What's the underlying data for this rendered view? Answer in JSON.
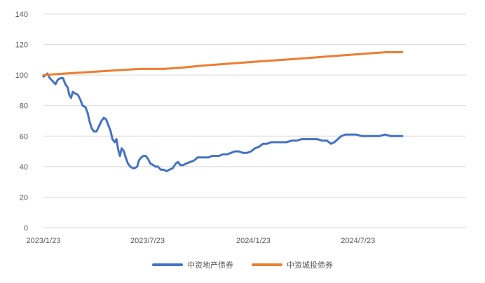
{
  "chart_data": {
    "type": "line",
    "title": "",
    "xlabel": "",
    "ylabel": "",
    "ylim": [
      0,
      140
    ],
    "yticks": [
      0,
      20,
      40,
      60,
      80,
      100,
      120,
      140
    ],
    "x_tick_labels": [
      "2023/1/23",
      "2023/7/23",
      "2024/1/23",
      "2024/7/23"
    ],
    "x_tick_dates": [
      "2023-01-23",
      "2023-07-23",
      "2024-01-23",
      "2024-07-23"
    ],
    "x_range": [
      "2023-01-23",
      "2025-01-27"
    ],
    "grid": true,
    "legend": "bottom",
    "series": [
      {
        "name": "中资地产债券",
        "color": "#4472C4",
        "points": [
          [
            "2023-01-23",
            99
          ],
          [
            "2023-01-27",
            100
          ],
          [
            "2023-01-30",
            101
          ],
          [
            "2023-02-03",
            98
          ],
          [
            "2023-02-08",
            96
          ],
          [
            "2023-02-13",
            94
          ],
          [
            "2023-02-17",
            97
          ],
          [
            "2023-02-22",
            98
          ],
          [
            "2023-02-26",
            98
          ],
          [
            "2023-03-02",
            94
          ],
          [
            "2023-03-06",
            92
          ],
          [
            "2023-03-09",
            87
          ],
          [
            "2023-03-12",
            85
          ],
          [
            "2023-03-15",
            89
          ],
          [
            "2023-03-19",
            88
          ],
          [
            "2023-03-24",
            87
          ],
          [
            "2023-03-28",
            84
          ],
          [
            "2023-04-01",
            80
          ],
          [
            "2023-04-06",
            79
          ],
          [
            "2023-04-10",
            75
          ],
          [
            "2023-04-13",
            70
          ],
          [
            "2023-04-17",
            65
          ],
          [
            "2023-04-21",
            63
          ],
          [
            "2023-04-25",
            63
          ],
          [
            "2023-04-29",
            66
          ],
          [
            "2023-05-04",
            70
          ],
          [
            "2023-05-08",
            72
          ],
          [
            "2023-05-12",
            71
          ],
          [
            "2023-05-16",
            67
          ],
          [
            "2023-05-20",
            63
          ],
          [
            "2023-05-23",
            58
          ],
          [
            "2023-05-27",
            56
          ],
          [
            "2023-05-30",
            58
          ],
          [
            "2023-06-02",
            51
          ],
          [
            "2023-06-05",
            47
          ],
          [
            "2023-06-08",
            52
          ],
          [
            "2023-06-12",
            50
          ],
          [
            "2023-06-15",
            46
          ],
          [
            "2023-06-19",
            42
          ],
          [
            "2023-06-23",
            40
          ],
          [
            "2023-06-27",
            39
          ],
          [
            "2023-07-01",
            39
          ],
          [
            "2023-07-05",
            40
          ],
          [
            "2023-07-08",
            44
          ],
          [
            "2023-07-12",
            46
          ],
          [
            "2023-07-16",
            47
          ],
          [
            "2023-07-20",
            47
          ],
          [
            "2023-07-24",
            45
          ],
          [
            "2023-07-28",
            42
          ],
          [
            "2023-08-02",
            41
          ],
          [
            "2023-08-06",
            40
          ],
          [
            "2023-08-10",
            40
          ],
          [
            "2023-08-15",
            38
          ],
          [
            "2023-08-20",
            38
          ],
          [
            "2023-08-25",
            37
          ],
          [
            "2023-08-30",
            38
          ],
          [
            "2023-09-05",
            39
          ],
          [
            "2023-09-10",
            42
          ],
          [
            "2023-09-14",
            43
          ],
          [
            "2023-09-18",
            41
          ],
          [
            "2023-09-23",
            41
          ],
          [
            "2023-09-28",
            42
          ],
          [
            "2023-10-05",
            43
          ],
          [
            "2023-10-12",
            44
          ],
          [
            "2023-10-18",
            46
          ],
          [
            "2023-10-24",
            46
          ],
          [
            "2023-10-30",
            46
          ],
          [
            "2023-11-06",
            46
          ],
          [
            "2023-11-12",
            47
          ],
          [
            "2023-11-18",
            47
          ],
          [
            "2023-11-24",
            47
          ],
          [
            "2023-12-01",
            48
          ],
          [
            "2023-12-08",
            48
          ],
          [
            "2023-12-15",
            49
          ],
          [
            "2023-12-22",
            50
          ],
          [
            "2023-12-29",
            50
          ],
          [
            "2024-01-05",
            49
          ],
          [
            "2024-01-12",
            49
          ],
          [
            "2024-01-19",
            50
          ],
          [
            "2024-01-26",
            52
          ],
          [
            "2024-02-02",
            53
          ],
          [
            "2024-02-09",
            55
          ],
          [
            "2024-02-16",
            55
          ],
          [
            "2024-02-23",
            56
          ],
          [
            "2024-03-01",
            56
          ],
          [
            "2024-03-10",
            56
          ],
          [
            "2024-03-20",
            56
          ],
          [
            "2024-03-30",
            57
          ],
          [
            "2024-04-08",
            57
          ],
          [
            "2024-04-16",
            58
          ],
          [
            "2024-04-25",
            58
          ],
          [
            "2024-05-04",
            58
          ],
          [
            "2024-05-13",
            58
          ],
          [
            "2024-05-22",
            57
          ],
          [
            "2024-05-30",
            57
          ],
          [
            "2024-06-06",
            55
          ],
          [
            "2024-06-12",
            56
          ],
          [
            "2024-06-18",
            58
          ],
          [
            "2024-06-24",
            60
          ],
          [
            "2024-07-01",
            61
          ],
          [
            "2024-07-10",
            61
          ],
          [
            "2024-07-20",
            61
          ],
          [
            "2024-07-30",
            60
          ],
          [
            "2024-08-09",
            60
          ],
          [
            "2024-08-19",
            60
          ],
          [
            "2024-08-29",
            60
          ],
          [
            "2024-09-08",
            61
          ],
          [
            "2024-09-18",
            60
          ],
          [
            "2024-09-28",
            60
          ],
          [
            "2024-10-08",
            60
          ]
        ]
      },
      {
        "name": "中资城投债券",
        "color": "#ED7D31",
        "points": [
          [
            "2023-01-23",
            100
          ],
          [
            "2023-03-01",
            101
          ],
          [
            "2023-04-15",
            102
          ],
          [
            "2023-05-25",
            103
          ],
          [
            "2023-07-10",
            104
          ],
          [
            "2023-08-20",
            104
          ],
          [
            "2023-09-25",
            105
          ],
          [
            "2023-10-20",
            106
          ],
          [
            "2023-11-25",
            107
          ],
          [
            "2023-12-30",
            108
          ],
          [
            "2024-02-05",
            109
          ],
          [
            "2024-03-15",
            110
          ],
          [
            "2024-04-20",
            111
          ],
          [
            "2024-05-25",
            112
          ],
          [
            "2024-07-01",
            113
          ],
          [
            "2024-08-05",
            114
          ],
          [
            "2024-09-10",
            115
          ],
          [
            "2024-10-08",
            115
          ]
        ]
      }
    ]
  }
}
